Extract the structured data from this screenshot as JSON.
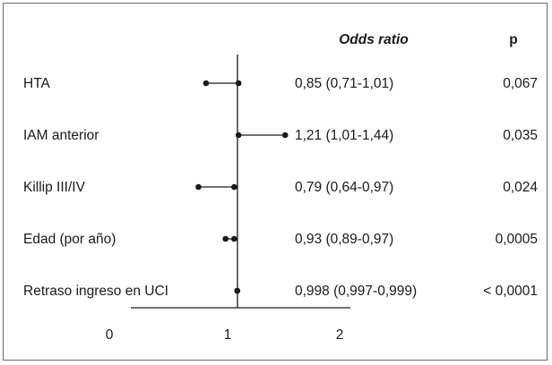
{
  "chart_data": {
    "type": "forest",
    "title": "",
    "xlabel": "",
    "xticks": [
      "0",
      "1",
      "2"
    ],
    "reference_line": 1,
    "columns": {
      "odds_ratio": "Odds ratio",
      "p": "p"
    },
    "rows": [
      {
        "label": "HTA",
        "or": 0.85,
        "ci_low": 0.71,
        "ci_high": 1.01,
        "or_text": "0,85 (0,71-1,01)",
        "p": "0,067"
      },
      {
        "label": "IAM anterior",
        "or": 1.21,
        "ci_low": 1.01,
        "ci_high": 1.44,
        "or_text": "1,21 (1,01-1,44)",
        "p": "0,035"
      },
      {
        "label": "Killip III/IV",
        "or": 0.79,
        "ci_low": 0.64,
        "ci_high": 0.97,
        "or_text": "0,79 (0,64-0,97)",
        "p": "0,024"
      },
      {
        "label": "Edad (por año)",
        "or": 0.93,
        "ci_low": 0.89,
        "ci_high": 0.97,
        "or_text": "0,93 (0,89-0,97)",
        "p": "0,0005"
      },
      {
        "label": "Retraso ingreso en UCI",
        "or": 0.998,
        "ci_low": 0.997,
        "ci_high": 0.999,
        "or_text": "0,998 (0,997-0,999)",
        "p": "< 0,0001"
      }
    ]
  }
}
